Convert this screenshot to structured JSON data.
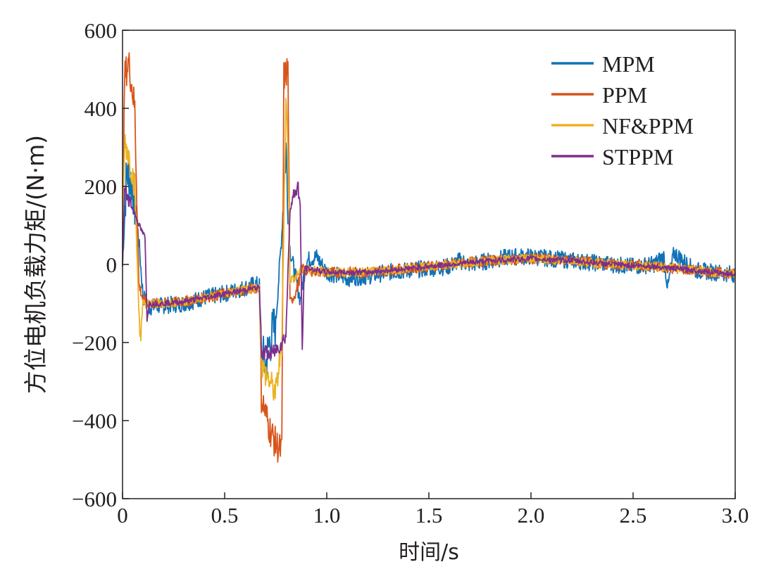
{
  "chart_data": {
    "type": "line",
    "title": "",
    "xlabel": "时间/s",
    "ylabel": "方位电机负载力矩/(N·m)",
    "xlim": [
      0,
      3.0
    ],
    "ylim": [
      -600,
      600
    ],
    "x_ticks": [
      0,
      0.5,
      1.0,
      1.5,
      2.0,
      2.5,
      3.0
    ],
    "x_tick_labels": [
      "0",
      "0.5",
      "1.0",
      "1.5",
      "2.0",
      "2.5",
      "3.0"
    ],
    "y_ticks": [
      600,
      400,
      200,
      0,
      -200,
      -400,
      -600
    ],
    "y_tick_labels": [
      "600",
      "400",
      "200",
      "0",
      "−200",
      "−400",
      "−600"
    ],
    "grid": false,
    "legend_position": "top-right",
    "series": [
      {
        "name": "MPM",
        "color": "#0f72b6",
        "points": [
          [
            0.0,
            0
          ],
          [
            0.02,
            240
          ],
          [
            0.05,
            200
          ],
          [
            0.08,
            60
          ],
          [
            0.1,
            -80
          ],
          [
            0.13,
            -110
          ],
          [
            0.2,
            -105
          ],
          [
            0.3,
            -100
          ],
          [
            0.4,
            -85
          ],
          [
            0.5,
            -75
          ],
          [
            0.6,
            -60
          ],
          [
            0.65,
            -50
          ],
          [
            0.67,
            -55
          ],
          [
            0.68,
            -230
          ],
          [
            0.7,
            -260
          ],
          [
            0.72,
            -200
          ],
          [
            0.75,
            -150
          ],
          [
            0.78,
            80
          ],
          [
            0.8,
            300
          ],
          [
            0.82,
            40
          ],
          [
            0.85,
            -40
          ],
          [
            0.87,
            -90
          ],
          [
            0.9,
            10
          ],
          [
            0.95,
            20
          ],
          [
            1.0,
            -20
          ],
          [
            1.1,
            -35
          ],
          [
            1.2,
            -30
          ],
          [
            1.3,
            -20
          ],
          [
            1.4,
            -15
          ],
          [
            1.5,
            -10
          ],
          [
            1.6,
            -5
          ],
          [
            1.65,
            10
          ],
          [
            1.7,
            0
          ],
          [
            1.8,
            10
          ],
          [
            1.9,
            20
          ],
          [
            2.0,
            20
          ],
          [
            2.1,
            15
          ],
          [
            2.2,
            10
          ],
          [
            2.3,
            5
          ],
          [
            2.4,
            0
          ],
          [
            2.5,
            -5
          ],
          [
            2.6,
            0
          ],
          [
            2.65,
            20
          ],
          [
            2.67,
            -60
          ],
          [
            2.7,
            30
          ],
          [
            2.8,
            -15
          ],
          [
            2.9,
            -20
          ],
          [
            3.0,
            -25
          ]
        ],
        "noise": 22
      },
      {
        "name": "PPM",
        "color": "#d9541a",
        "points": [
          [
            0.0,
            0
          ],
          [
            0.01,
            480
          ],
          [
            0.03,
            520
          ],
          [
            0.06,
            400
          ],
          [
            0.08,
            -50
          ],
          [
            0.1,
            -90
          ],
          [
            0.13,
            -100
          ],
          [
            0.2,
            -100
          ],
          [
            0.3,
            -95
          ],
          [
            0.4,
            -85
          ],
          [
            0.5,
            -75
          ],
          [
            0.6,
            -65
          ],
          [
            0.65,
            -60
          ],
          [
            0.67,
            -60
          ],
          [
            0.68,
            -340
          ],
          [
            0.7,
            -380
          ],
          [
            0.72,
            -420
          ],
          [
            0.75,
            -460
          ],
          [
            0.78,
            -480
          ],
          [
            0.79,
            480
          ],
          [
            0.81,
            500
          ],
          [
            0.82,
            -100
          ],
          [
            0.85,
            -70
          ],
          [
            0.88,
            -10
          ],
          [
            0.9,
            -15
          ],
          [
            1.0,
            -20
          ],
          [
            1.2,
            -20
          ],
          [
            1.4,
            -10
          ],
          [
            1.6,
            0
          ],
          [
            1.8,
            10
          ],
          [
            2.0,
            15
          ],
          [
            2.2,
            10
          ],
          [
            2.4,
            0
          ],
          [
            2.6,
            -5
          ],
          [
            2.8,
            -15
          ],
          [
            3.0,
            -25
          ]
        ],
        "noise": 14
      },
      {
        "name": "NF&PPM",
        "color": "#edb120",
        "points": [
          [
            0.0,
            0
          ],
          [
            0.01,
            320
          ],
          [
            0.03,
            280
          ],
          [
            0.06,
            200
          ],
          [
            0.08,
            -120
          ],
          [
            0.09,
            -180
          ],
          [
            0.1,
            -100
          ],
          [
            0.13,
            -100
          ],
          [
            0.2,
            -100
          ],
          [
            0.3,
            -95
          ],
          [
            0.4,
            -85
          ],
          [
            0.5,
            -75
          ],
          [
            0.6,
            -65
          ],
          [
            0.65,
            -60
          ],
          [
            0.67,
            -60
          ],
          [
            0.68,
            -260
          ],
          [
            0.72,
            -300
          ],
          [
            0.75,
            -330
          ],
          [
            0.78,
            -200
          ],
          [
            0.8,
            420
          ],
          [
            0.81,
            300
          ],
          [
            0.82,
            -40
          ],
          [
            0.85,
            -30
          ],
          [
            0.88,
            -10
          ],
          [
            0.9,
            -10
          ],
          [
            1.0,
            -20
          ],
          [
            1.2,
            -20
          ],
          [
            1.4,
            -10
          ],
          [
            1.6,
            0
          ],
          [
            1.8,
            10
          ],
          [
            2.0,
            15
          ],
          [
            2.2,
            10
          ],
          [
            2.4,
            0
          ],
          [
            2.6,
            -5
          ],
          [
            2.8,
            -15
          ],
          [
            3.0,
            -25
          ]
        ],
        "noise": 12
      },
      {
        "name": "STPPM",
        "color": "#7e2f8e",
        "points": [
          [
            0.0,
            0
          ],
          [
            0.01,
            190
          ],
          [
            0.03,
            170
          ],
          [
            0.06,
            130
          ],
          [
            0.09,
            90
          ],
          [
            0.11,
            70
          ],
          [
            0.12,
            -140
          ],
          [
            0.13,
            -100
          ],
          [
            0.2,
            -100
          ],
          [
            0.3,
            -95
          ],
          [
            0.4,
            -85
          ],
          [
            0.5,
            -75
          ],
          [
            0.6,
            -65
          ],
          [
            0.65,
            -60
          ],
          [
            0.67,
            -60
          ],
          [
            0.68,
            -220
          ],
          [
            0.72,
            -230
          ],
          [
            0.75,
            -220
          ],
          [
            0.78,
            -200
          ],
          [
            0.8,
            -180
          ],
          [
            0.82,
            140
          ],
          [
            0.84,
            180
          ],
          [
            0.86,
            200
          ],
          [
            0.87,
            150
          ],
          [
            0.88,
            -220
          ],
          [
            0.89,
            -10
          ],
          [
            0.9,
            -10
          ],
          [
            1.0,
            -20
          ],
          [
            1.2,
            -20
          ],
          [
            1.4,
            -10
          ],
          [
            1.6,
            0
          ],
          [
            1.8,
            10
          ],
          [
            2.0,
            15
          ],
          [
            2.2,
            10
          ],
          [
            2.4,
            0
          ],
          [
            2.6,
            -5
          ],
          [
            2.8,
            -15
          ],
          [
            3.0,
            -25
          ]
        ],
        "noise": 7
      }
    ]
  }
}
